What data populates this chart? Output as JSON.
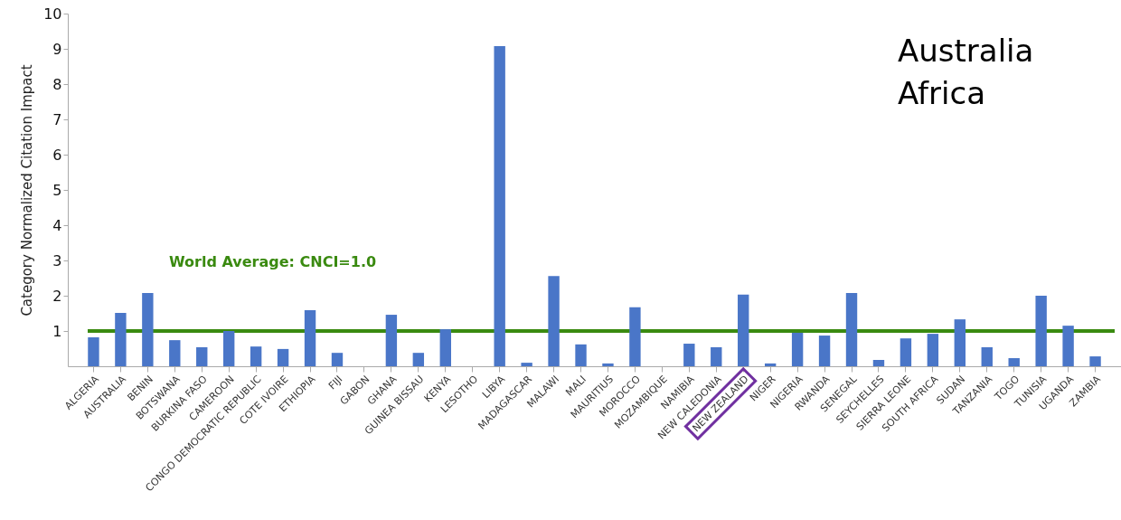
{
  "chart_data": {
    "type": "bar",
    "ylabel": "Category Normalized Citation Impact",
    "categories": [
      "ALGERIA",
      "AUSTRALIA",
      "BENIN",
      "BOTSWANA",
      "BURKINA FASO",
      "CAMEROON",
      "CONGO DEMOCRATIC REPUBLIC",
      "COTE IVOIRE",
      "ETHIOPIA",
      "FIJI",
      "GABON",
      "GHANA",
      "GUINEA BISSAU",
      "KENYA",
      "LESOTHO",
      "LIBYA",
      "MADAGASCAR",
      "MALAWI",
      "MALI",
      "MAURITIUS",
      "MOROCCO",
      "MOZAMBIQUE",
      "NAMIBIA",
      "NEW CALEDONIA",
      "NEW ZEALAND",
      "NIGER",
      "NIGERIA",
      "RWANDA",
      "SENEGAL",
      "SEYCHELLES",
      "SIERRA LEONE",
      "SOUTH AFRICA",
      "SUDAN",
      "TANZANIA",
      "TOGO",
      "TUNISIA",
      "UGANDA",
      "ZAMBIA"
    ],
    "values": [
      0.82,
      1.51,
      2.08,
      0.74,
      0.54,
      1.0,
      0.56,
      0.49,
      1.59,
      0.38,
      0,
      1.46,
      0.38,
      1.05,
      0,
      9.08,
      0.1,
      2.56,
      0.62,
      0.08,
      1.67,
      0,
      0.64,
      0.54,
      2.03,
      0.08,
      0.95,
      0.87,
      2.08,
      0.18,
      0.79,
      0.92,
      1.33,
      0.54,
      0.23,
      2.0,
      1.15,
      0.28
    ],
    "color": "#4a76c8",
    "ylim": [
      0,
      10
    ],
    "yticks": [
      1,
      2,
      3,
      4,
      5,
      6,
      7,
      8,
      9,
      10
    ],
    "grid": false,
    "ref_lines": [
      {
        "axis": "y",
        "value": 1,
        "label": "World Average: CNCI=1.0",
        "color": "#3a8a10"
      }
    ],
    "annotations": [
      "Australia",
      "Africa"
    ]
  }
}
